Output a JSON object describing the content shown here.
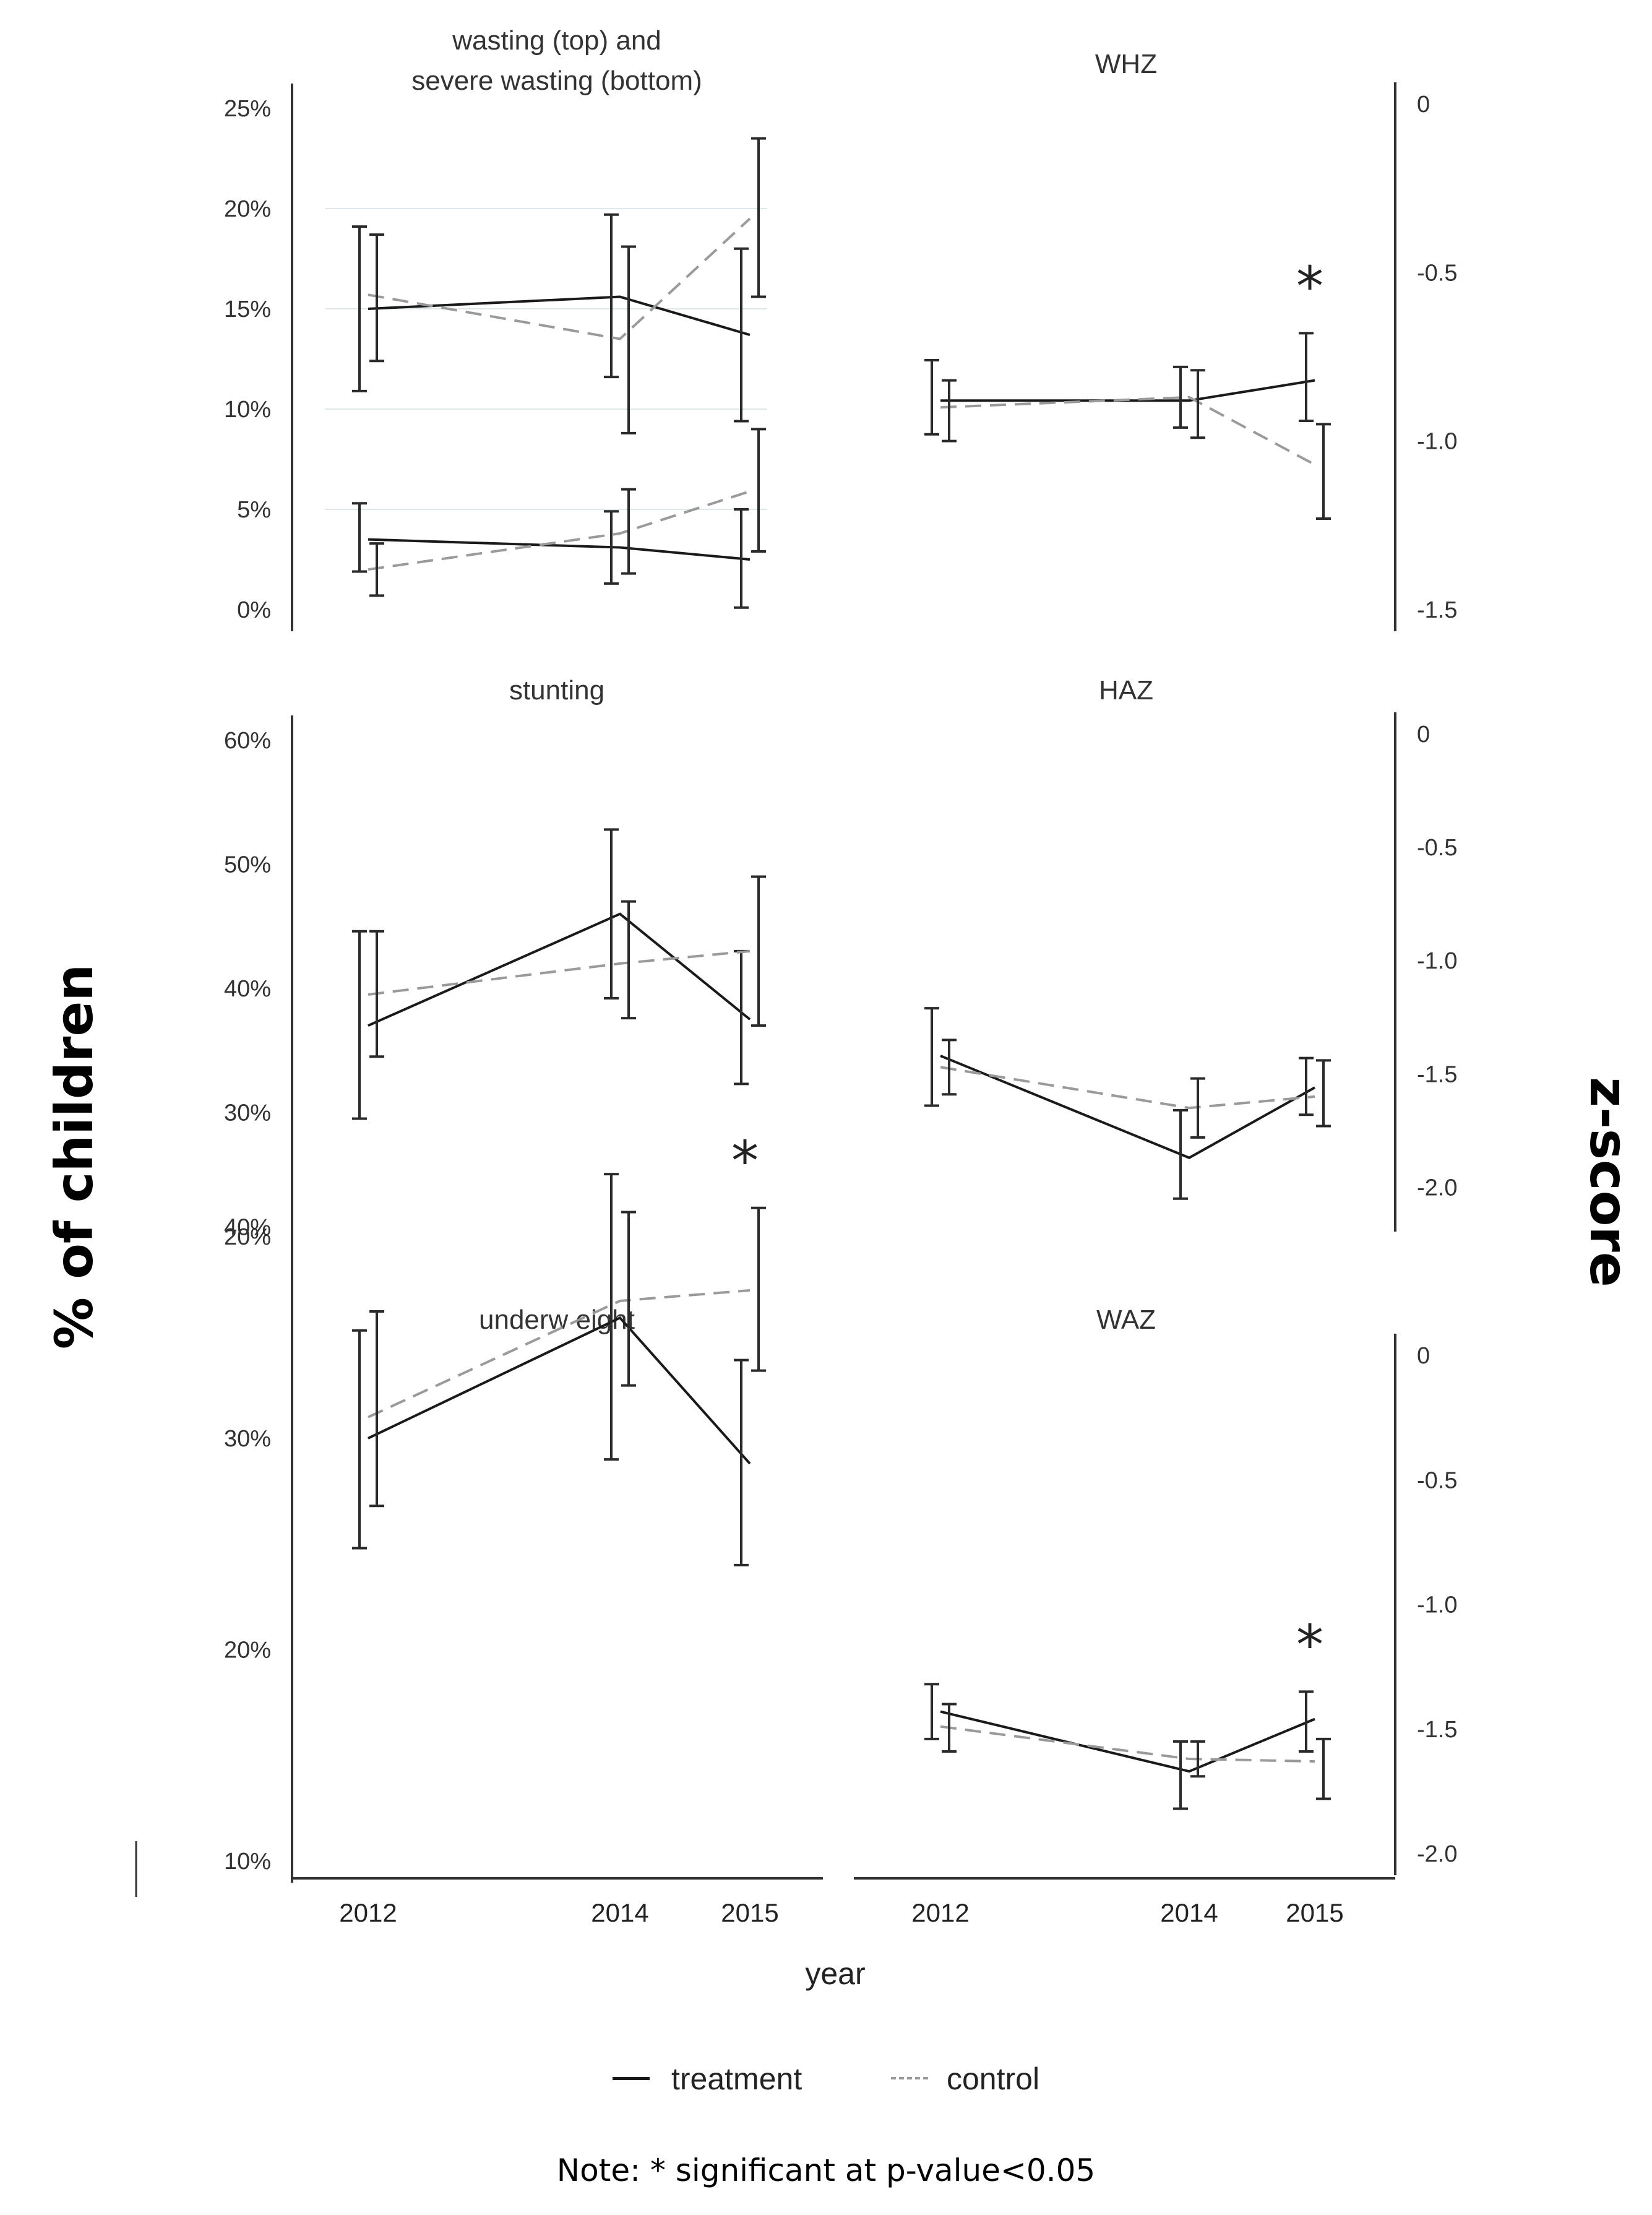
{
  "figure": {
    "left_axis_label": "% of children",
    "right_axis_label": "z-score",
    "x_axis_label": "year",
    "note": "Note: * significant at p-value<0.05"
  },
  "legend": [
    {
      "label": "treatment",
      "style": "solid",
      "color": "#1a1a1a"
    },
    {
      "label": "control",
      "style": "dashed",
      "color": "#9a9a9a"
    }
  ],
  "chart_data": [
    {
      "id": "wasting",
      "type": "line",
      "title": "wasting (top) and\nsevere wasting (bottom)",
      "x": [
        "2012",
        "2014",
        "2015"
      ],
      "ylim": [
        0,
        25
      ],
      "yticks": [
        "0%",
        "5%",
        "10%",
        "15%",
        "20%",
        "25%"
      ],
      "ytick_values": [
        0,
        5,
        10,
        15,
        20,
        25
      ],
      "grid": true,
      "significant": [],
      "series": [
        {
          "name": "treatment",
          "values": [
            15.0,
            15.6,
            13.7
          ],
          "err_low": [
            10.9,
            11.6,
            9.4
          ],
          "err_high": [
            19.1,
            19.7,
            18.0
          ]
        },
        {
          "name": "control",
          "values": [
            15.7,
            13.5,
            19.5
          ],
          "err_low": [
            12.4,
            8.8,
            15.6
          ],
          "err_high": [
            18.7,
            18.1,
            23.5
          ]
        },
        {
          "name": "treatment",
          "values": [
            3.5,
            3.1,
            2.5
          ],
          "err_low": [
            1.9,
            1.3,
            0.1
          ],
          "err_high": [
            5.3,
            4.9,
            5.0
          ]
        },
        {
          "name": "control",
          "values": [
            2.0,
            3.8,
            5.9
          ],
          "err_low": [
            0.7,
            1.8,
            2.9
          ],
          "err_high": [
            3.3,
            6.0,
            9.0
          ]
        }
      ]
    },
    {
      "id": "whz",
      "type": "line",
      "title": "WHZ",
      "x": [
        "2012",
        "2014",
        "2015"
      ],
      "ylim": [
        -1.5,
        0
      ],
      "yticks": [
        "0",
        "-0.5",
        "-1.0",
        "-1.5"
      ],
      "ytick_values": [
        0,
        -0.5,
        -1.0,
        -1.5
      ],
      "significant": [
        "2015"
      ],
      "series": [
        {
          "name": "treatment",
          "values": [
            -0.88,
            -0.88,
            -0.82
          ],
          "err_low": [
            -0.98,
            -0.96,
            -0.94
          ],
          "err_high": [
            -0.76,
            -0.78,
            -0.68
          ]
        },
        {
          "name": "control",
          "values": [
            -0.9,
            -0.87,
            -1.07
          ],
          "err_low": [
            -1.0,
            -0.99,
            -1.23
          ],
          "err_high": [
            -0.82,
            -0.79,
            -0.95
          ]
        }
      ]
    },
    {
      "id": "stunting",
      "type": "line",
      "title": "stunting",
      "x": [
        "2012",
        "2014",
        "2015"
      ],
      "ylim": [
        20,
        60
      ],
      "yticks": [
        "20%",
        "30%",
        "40%",
        "50%",
        "60%"
      ],
      "ytick_values": [
        20,
        30,
        40,
        50,
        60
      ],
      "significant": [],
      "series": [
        {
          "name": "treatment",
          "values": [
            37.0,
            46.0,
            37.5
          ],
          "err_low": [
            29.5,
            39.2,
            32.3
          ],
          "err_high": [
            44.6,
            52.8,
            43.0
          ]
        },
        {
          "name": "control",
          "values": [
            39.5,
            42.0,
            43.0
          ],
          "err_low": [
            34.5,
            37.6,
            37.0
          ],
          "err_high": [
            44.6,
            47.0,
            49.0
          ]
        }
      ]
    },
    {
      "id": "haz",
      "type": "line",
      "title": "HAZ",
      "x": [
        "2012",
        "2014",
        "2015"
      ],
      "ylim": [
        -2.1,
        0
      ],
      "yticks": [
        "0",
        "-0.5",
        "-1.0",
        "-1.5",
        "-2.0"
      ],
      "ytick_values": [
        0,
        -0.5,
        -1.0,
        -1.5,
        -2.0
      ],
      "significant": [],
      "series": [
        {
          "name": "treatment",
          "values": [
            -1.42,
            -1.87,
            -1.56
          ],
          "err_low": [
            -1.64,
            -2.05,
            -1.68
          ],
          "err_high": [
            -1.21,
            -1.66,
            -1.43
          ]
        },
        {
          "name": "control",
          "values": [
            -1.47,
            -1.65,
            -1.6
          ],
          "err_low": [
            -1.59,
            -1.78,
            -1.73
          ],
          "err_high": [
            -1.35,
            -1.52,
            -1.44
          ]
        }
      ]
    },
    {
      "id": "underweight",
      "type": "line",
      "title": "underw eight",
      "x": [
        "2012",
        "2014",
        "2015"
      ],
      "ylim": [
        10,
        43
      ],
      "yticks": [
        "10%",
        "20%",
        "30%",
        "40%"
      ],
      "ytick_values": [
        10,
        20,
        30,
        40
      ],
      "significant": [
        "2015"
      ],
      "series": [
        {
          "name": "treatment",
          "values": [
            30.0,
            35.7,
            28.8
          ],
          "err_low": [
            24.8,
            29.0,
            24.0
          ],
          "err_high": [
            35.1,
            42.5,
            33.7
          ]
        },
        {
          "name": "control",
          "values": [
            31.0,
            36.5,
            37.0
          ],
          "err_low": [
            26.8,
            32.5,
            33.2
          ],
          "err_high": [
            36.0,
            40.7,
            40.9
          ]
        }
      ]
    },
    {
      "id": "waz",
      "type": "line",
      "title": "WAZ",
      "x": [
        "2012",
        "2014",
        "2015"
      ],
      "ylim": [
        -2.0,
        0
      ],
      "yticks": [
        "0",
        "-0.5",
        "-1.0",
        "-1.5",
        "-2.0"
      ],
      "ytick_values": [
        0,
        -0.5,
        -1.0,
        -1.5,
        -2.0
      ],
      "significant": [
        "2015"
      ],
      "series": [
        {
          "name": "treatment",
          "values": [
            -1.43,
            -1.67,
            -1.46
          ],
          "err_low": [
            -1.54,
            -1.82,
            -1.59
          ],
          "err_high": [
            -1.32,
            -1.55,
            -1.35
          ]
        },
        {
          "name": "control",
          "values": [
            -1.49,
            -1.62,
            -1.63
          ],
          "err_low": [
            -1.59,
            -1.69,
            -1.78
          ],
          "err_high": [
            -1.4,
            -1.55,
            -1.54
          ]
        }
      ]
    }
  ]
}
